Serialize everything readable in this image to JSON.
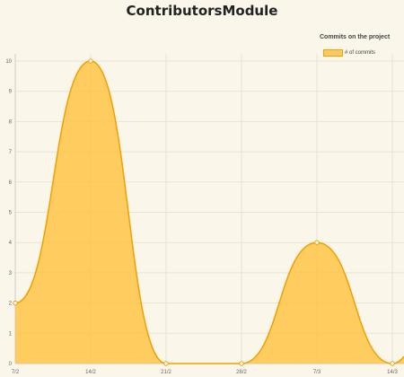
{
  "title": "ContributorsModule",
  "chart_data": {
    "type": "area",
    "title": "Commits on the project",
    "categories": [
      "7/2",
      "14/2",
      "21/2",
      "28/2",
      "7/3",
      "14/3"
    ],
    "series": [
      {
        "name": "# of commits",
        "values": [
          2,
          10,
          0,
          0,
          4,
          0
        ],
        "color": "#f0a000",
        "fill": "#ffc23c"
      }
    ],
    "ylim": [
      0,
      10
    ],
    "yticks": [
      0,
      1,
      2,
      3,
      4,
      5,
      6,
      7,
      8,
      9,
      10
    ],
    "grid": true,
    "legend": "top-right"
  }
}
